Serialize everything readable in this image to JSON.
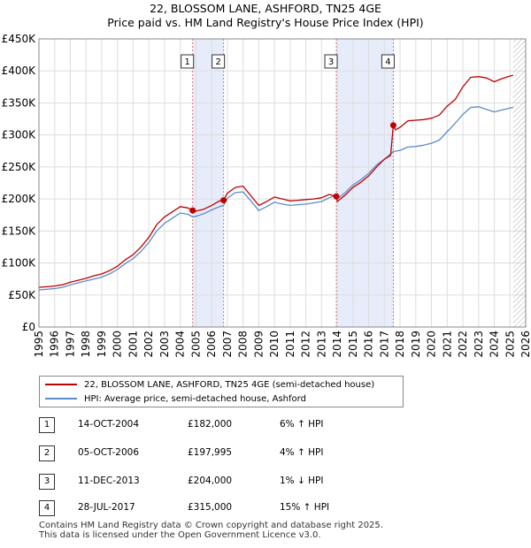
{
  "title_line1": "22, BLOSSOM LANE, ASHFORD, TN25 4GE",
  "title_line2": "Price paid vs. HM Land Registry's House Price Index (HPI)",
  "legend": {
    "property": "22, BLOSSOM LANE, ASHFORD, TN25 4GE (semi-detached house)",
    "hpi": "HPI: Average price, semi-detached house, Ashford"
  },
  "colors": {
    "property": "#c00000",
    "hpi": "#5b8ccc",
    "shade": "#e6ecfa",
    "marker_line": "#e07070",
    "grid": "#dddddd",
    "future_hatch": "#aaaaaa"
  },
  "sales": [
    {
      "num": "1",
      "date": "14-OCT-2004",
      "price": "£182,000",
      "delta": "6% ↑ HPI"
    },
    {
      "num": "2",
      "date": "05-OCT-2006",
      "price": "£197,995",
      "delta": "4% ↑ HPI"
    },
    {
      "num": "3",
      "date": "11-DEC-2013",
      "price": "£204,000",
      "delta": "1% ↓ HPI"
    },
    {
      "num": "4",
      "date": "28-JUL-2017",
      "price": "£315,000",
      "delta": "15% ↑ HPI"
    }
  ],
  "footer_line1": "Contains HM Land Registry data © Crown copyright and database right 2025.",
  "footer_line2": "This data is licensed under the Open Government Licence v3.0.",
  "chart_data": {
    "type": "line",
    "title": "22, BLOSSOM LANE, ASHFORD, TN25 4GE — Price paid vs. HM Land Registry's House Price Index (HPI)",
    "xlabel": "",
    "ylabel": "",
    "xlim": [
      1995,
      2026
    ],
    "ylim": [
      0,
      450000
    ],
    "x_ticks": [
      1995,
      1996,
      1997,
      1998,
      1999,
      2000,
      2001,
      2002,
      2003,
      2004,
      2005,
      2006,
      2007,
      2008,
      2009,
      2010,
      2011,
      2012,
      2013,
      2014,
      2015,
      2016,
      2017,
      2018,
      2019,
      2020,
      2021,
      2022,
      2023,
      2024,
      2025,
      2026
    ],
    "y_ticks": [
      {
        "value": 0,
        "label": "£0"
      },
      {
        "value": 50000,
        "label": "£50K"
      },
      {
        "value": 100000,
        "label": "£100K"
      },
      {
        "value": 150000,
        "label": "£150K"
      },
      {
        "value": 200000,
        "label": "£200K"
      },
      {
        "value": 250000,
        "label": "£250K"
      },
      {
        "value": 300000,
        "label": "£300K"
      },
      {
        "value": 350000,
        "label": "£350K"
      },
      {
        "value": 400000,
        "label": "£400K"
      },
      {
        "value": 450000,
        "label": "£450K"
      }
    ],
    "shaded_periods": [
      [
        2004.79,
        2006.76
      ],
      [
        2013.94,
        2017.57
      ]
    ],
    "future_from": 2025.2,
    "sale_markers": [
      {
        "label": "1",
        "x": 2004.79,
        "price": 182000
      },
      {
        "label": "2",
        "x": 2006.76,
        "price": 197995
      },
      {
        "label": "3",
        "x": 2013.94,
        "price": 204000
      },
      {
        "label": "4",
        "x": 2017.57,
        "price": 315000
      }
    ],
    "series": [
      {
        "name": "22, BLOSSOM LANE, ASHFORD, TN25 4GE (semi-detached house)",
        "color": "#c00000",
        "x": [
          1995,
          1995.5,
          1996,
          1996.5,
          1997,
          1997.5,
          1998,
          1998.5,
          1999,
          1999.5,
          2000,
          2000.5,
          2001,
          2001.5,
          2002,
          2002.5,
          2003,
          2003.5,
          2004,
          2004.5,
          2004.79,
          2005,
          2005.5,
          2006,
          2006.5,
          2006.76,
          2007,
          2007.5,
          2008,
          2008.5,
          2009,
          2009.5,
          2010,
          2010.5,
          2011,
          2011.5,
          2012,
          2012.5,
          2013,
          2013.5,
          2013.94,
          2014,
          2014.5,
          2015,
          2015.5,
          2016,
          2016.5,
          2017,
          2017.4,
          2017.57,
          2017.7,
          2018,
          2018.5,
          2019,
          2019.5,
          2020,
          2020.5,
          2021,
          2021.5,
          2022,
          2022.5,
          2023,
          2023.5,
          2024,
          2024.5,
          2025,
          2025.2
        ],
        "values": [
          62000,
          63000,
          64000,
          66000,
          70000,
          73000,
          76000,
          80000,
          83000,
          88000,
          95000,
          105000,
          113000,
          125000,
          140000,
          160000,
          172000,
          180000,
          188000,
          186000,
          182000,
          181000,
          184000,
          190000,
          197000,
          197995,
          209000,
          218000,
          220000,
          205000,
          190000,
          196000,
          203000,
          200000,
          197000,
          198000,
          199000,
          200000,
          202000,
          207000,
          204000,
          196000,
          206000,
          218000,
          226000,
          236000,
          250000,
          262000,
          268000,
          315000,
          308000,
          312000,
          322000,
          323000,
          324000,
          326000,
          331000,
          345000,
          355000,
          375000,
          390000,
          391000,
          389000,
          383000,
          388000,
          392000,
          393000
        ]
      },
      {
        "name": "HPI: Average price, semi-detached house, Ashford",
        "color": "#5b8ccc",
        "x": [
          1995,
          1995.5,
          1996,
          1996.5,
          1997,
          1997.5,
          1998,
          1998.5,
          1999,
          1999.5,
          2000,
          2000.5,
          2001,
          2001.5,
          2002,
          2002.5,
          2003,
          2003.5,
          2004,
          2004.5,
          2004.79,
          2005,
          2005.5,
          2006,
          2006.5,
          2006.76,
          2007,
          2007.5,
          2008,
          2008.5,
          2009,
          2009.5,
          2010,
          2010.5,
          2011,
          2011.5,
          2012,
          2012.5,
          2013,
          2013.5,
          2013.94,
          2014,
          2014.5,
          2015,
          2015.5,
          2016,
          2016.5,
          2017,
          2017.57,
          2018,
          2018.5,
          2019,
          2019.5,
          2020,
          2020.5,
          2021,
          2021.5,
          2022,
          2022.5,
          2023,
          2023.5,
          2024,
          2024.5,
          2025,
          2025.2
        ],
        "values": [
          58000,
          59000,
          60000,
          62000,
          66000,
          69000,
          72000,
          75000,
          78000,
          83000,
          90000,
          99000,
          107000,
          118000,
          132000,
          150000,
          162000,
          170000,
          178000,
          176000,
          172000,
          173000,
          177000,
          183000,
          188000,
          190000,
          201000,
          210000,
          211000,
          197000,
          182000,
          188000,
          195000,
          192000,
          190000,
          191000,
          192000,
          194000,
          196000,
          202000,
          206000,
          200000,
          210000,
          222000,
          230000,
          240000,
          253000,
          262000,
          274000,
          276000,
          281000,
          282000,
          284000,
          287000,
          292000,
          305000,
          318000,
          332000,
          343000,
          344000,
          340000,
          336000,
          339000,
          342000,
          343000
        ]
      }
    ]
  }
}
